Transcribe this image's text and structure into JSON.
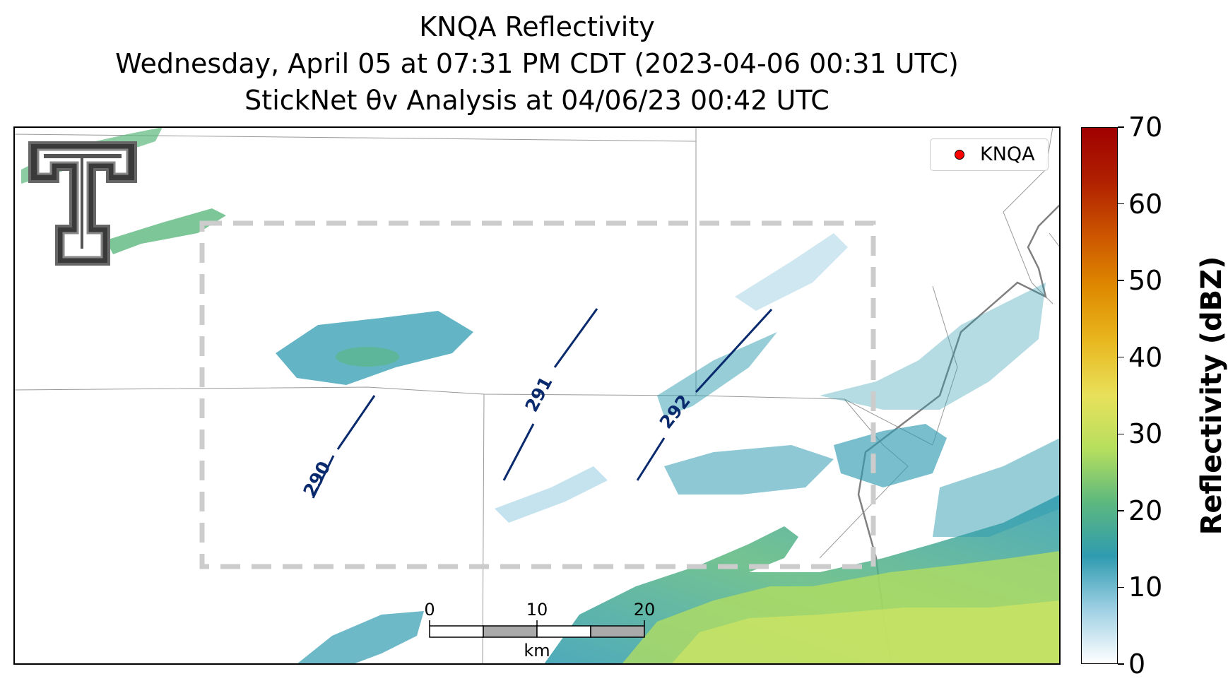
{
  "title": {
    "line1": "KNQA Reflectivity",
    "line2": "Wednesday, April 05 at 07:31 PM CDT (2023-04-06 00:31 UTC)",
    "line3": "StickNet θv Analysis at 04/06/23 00:42 UTC"
  },
  "legend": {
    "label": "KNQA",
    "marker_color": "#ff0000"
  },
  "colorbar": {
    "label": "Reflectivity (dBZ)",
    "ticks": [
      "0",
      "10",
      "20",
      "30",
      "40",
      "50",
      "60",
      "70"
    ],
    "range": [
      0,
      70
    ],
    "colors": [
      "#ffffff",
      "#9fd0e4",
      "#2f9bb0",
      "#5cb87e",
      "#b6df5e",
      "#e8e05a",
      "#e8b820",
      "#df8a00",
      "#cc5500",
      "#b02000",
      "#a00000"
    ]
  },
  "contours": {
    "labels": [
      "290",
      "291",
      "292"
    ],
    "color": "#0a2a6e"
  },
  "scalebar": {
    "ticks": [
      "0",
      "10",
      "20"
    ],
    "unit": "km"
  },
  "logo": {
    "name": "texas-tech-double-t-logo"
  }
}
